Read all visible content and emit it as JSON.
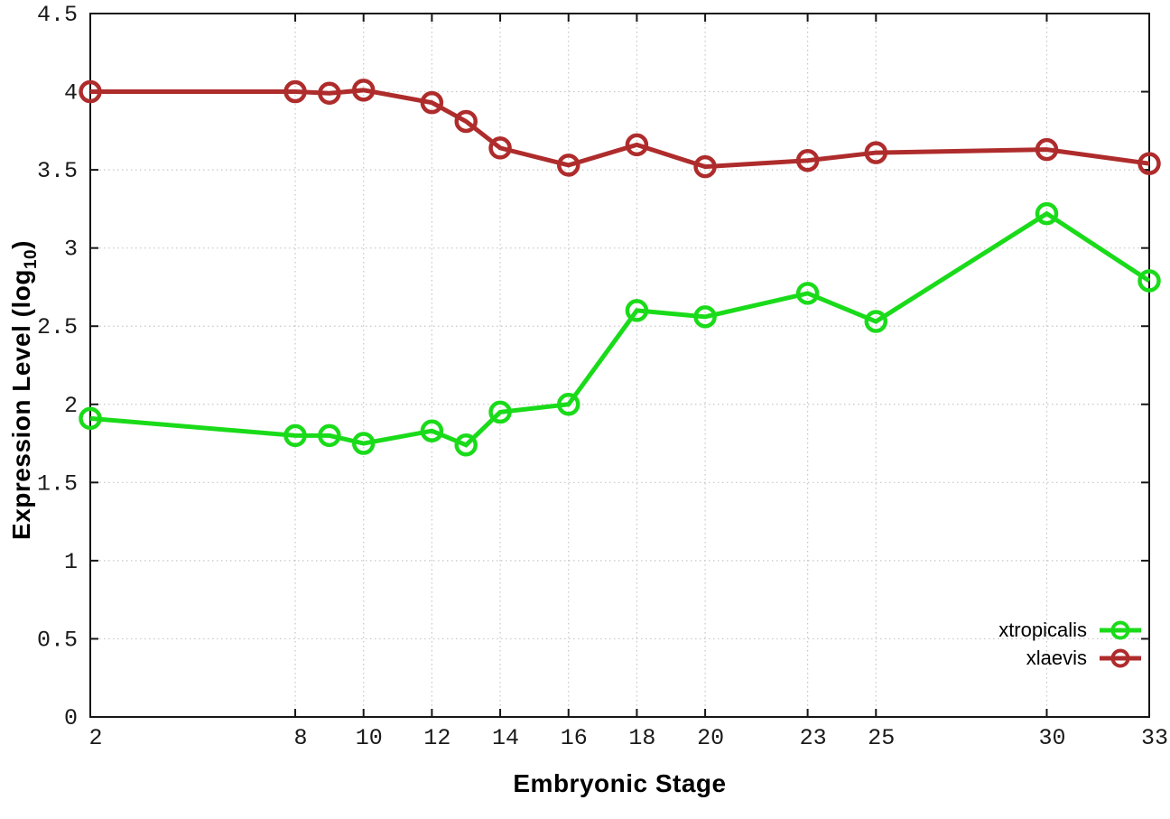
{
  "chart_data": {
    "type": "line",
    "x": [
      2,
      8,
      9,
      10,
      12,
      13,
      14,
      16,
      18,
      20,
      23,
      25,
      30,
      33
    ],
    "series": [
      {
        "name": "xtropicalis",
        "color": "#1adb1a",
        "values": [
          1.91,
          1.8,
          1.8,
          1.75,
          1.83,
          1.74,
          1.95,
          2.0,
          2.6,
          2.56,
          2.71,
          2.53,
          3.22,
          2.79
        ]
      },
      {
        "name": "xlaevis",
        "color": "#af2c2c",
        "values": [
          4.0,
          4.0,
          3.99,
          4.01,
          3.93,
          3.81,
          3.64,
          3.53,
          3.66,
          3.52,
          3.56,
          3.61,
          3.63,
          3.54
        ]
      }
    ],
    "title": "",
    "xlabel": "Embryonic Stage",
    "ylabel": "Expression Level (log10)",
    "ylabel_parts": {
      "main": "Expression Level (log",
      "sub": "10",
      "close": ")"
    },
    "xlim": [
      2,
      33
    ],
    "ylim": [
      0,
      4.5
    ],
    "xticks": [
      2,
      8,
      10,
      12,
      14,
      16,
      18,
      20,
      23,
      25,
      30,
      33
    ],
    "yticks": [
      0,
      0.5,
      1,
      1.5,
      2,
      2.5,
      3,
      3.5,
      4,
      4.5
    ],
    "grid": true,
    "legend_position": "bottom-right",
    "marker": "open-circle"
  },
  "colors": {
    "background": "#ffffff",
    "grid": "#c6c6c6",
    "axis": "#161616",
    "tick_text": "#1a1a1a"
  }
}
